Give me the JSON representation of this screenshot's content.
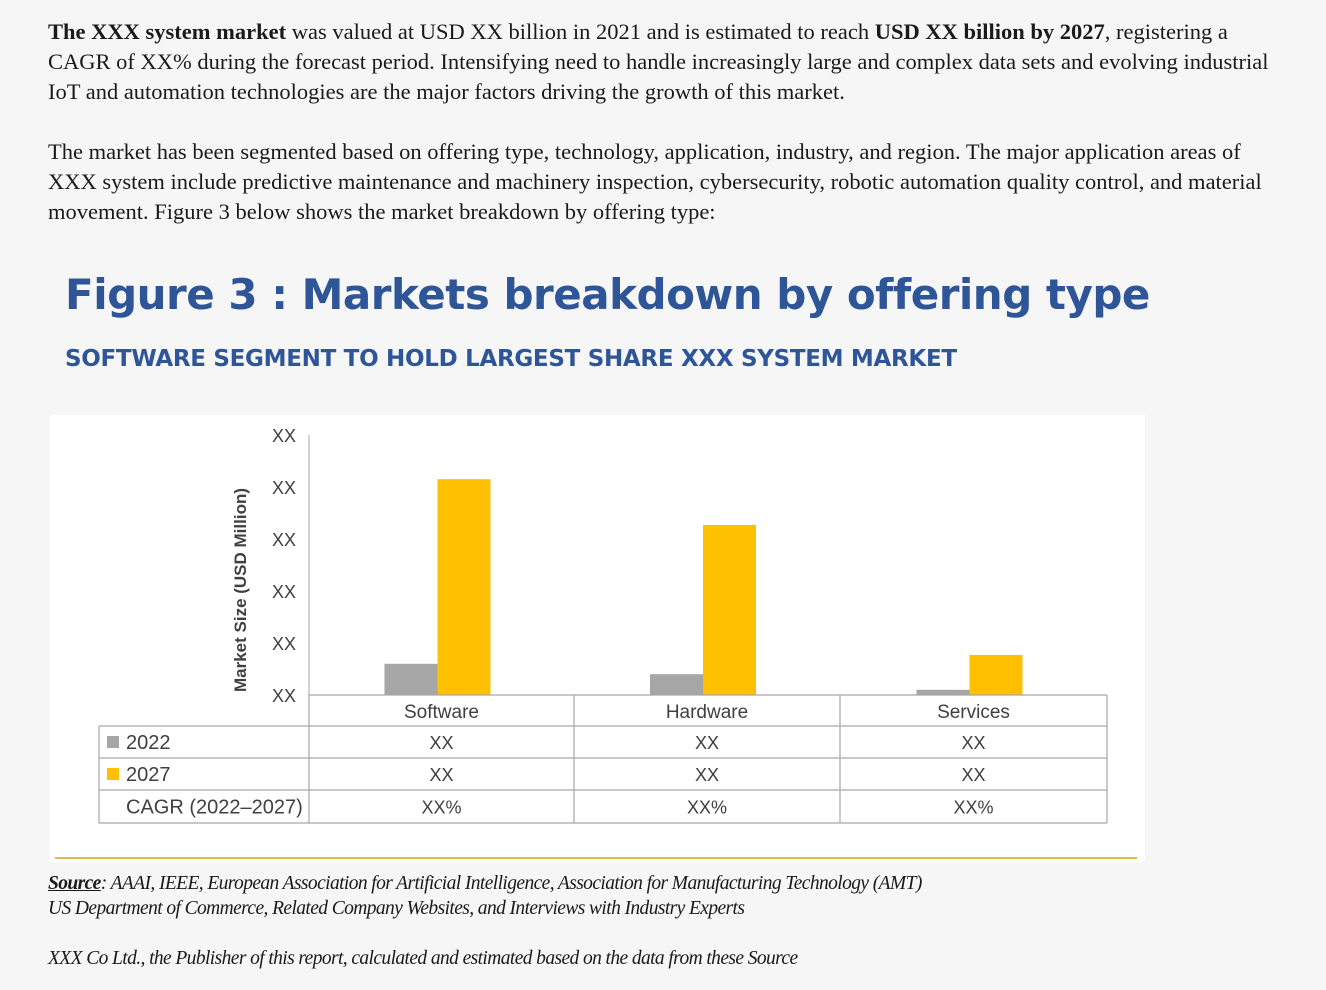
{
  "paragraphs": {
    "p1": {
      "s1_bold": "The XXX system market",
      "s2": " was valued at USD XX billion in 2021 and is estimated to reach ",
      "s3_bold": "USD XX billion by 2027",
      "s4": ", registering a CAGR of XX% during the forecast period. Intensifying need to handle increasingly large and complex data sets and evolving industrial IoT and automation technologies are the major factors driving the growth of this market."
    },
    "p2": "The market has been segmented based on offering type, technology, application, industry, and region. The major application areas of XXX system include predictive maintenance and machinery inspection, cybersecurity, robotic automation quality control, and material movement. Figure 3 below shows the market breakdown by offering type:"
  },
  "figure": {
    "title": "Figure 3 : Markets breakdown by offering type",
    "subtitle": "SOFTWARE SEGMENT TO HOLD LARGEST SHARE XXX SYSTEM MARKET"
  },
  "chart_data": {
    "type": "bar",
    "title": "Figure 3 : Markets breakdown by offering type",
    "subtitle": "SOFTWARE SEGMENT TO HOLD LARGEST SHARE XXX SYSTEM MARKET",
    "ylabel": "Market Size (USD Million)",
    "xlabel": "",
    "y_ticks": [
      "XX",
      "XX",
      "XX",
      "XX",
      "XX",
      "XX"
    ],
    "ylim": [
      0,
      5
    ],
    "grid": false,
    "categories": [
      "Software",
      "Hardware",
      "Services"
    ],
    "series": [
      {
        "name": "2022",
        "color": "#a6a6a6",
        "values": [
          0.6,
          0.4,
          0.1
        ]
      },
      {
        "name": "2027",
        "color": "#ffc000",
        "values": [
          4.15,
          3.27,
          0.77
        ]
      }
    ],
    "table": {
      "rows": [
        {
          "label": "2022",
          "marker_color": "#a6a6a6",
          "values": [
            "XX",
            "XX",
            "XX"
          ]
        },
        {
          "label": "2027",
          "marker_color": "#ffc000",
          "values": [
            "XX",
            "XX",
            "XX"
          ]
        },
        {
          "label": "CAGR (2022–2027)",
          "marker_color": null,
          "values": [
            "XX%",
            "XX%",
            "XX%"
          ]
        }
      ]
    }
  },
  "source": {
    "label": "Source",
    "line1": ": AAAI, IEEE, European Association for Artificial Intelligence, Association for Manufacturing Technology (AMT)",
    "line2": "US Department of Commerce, Related Company Websites, and Interviews with Industry Experts",
    "note": "XXX Co Ltd., the Publisher of this report, calculated and estimated based on the data from these Source"
  },
  "colors": {
    "title_blue": "#2e5597",
    "gold_rule": "#e8b64a"
  }
}
